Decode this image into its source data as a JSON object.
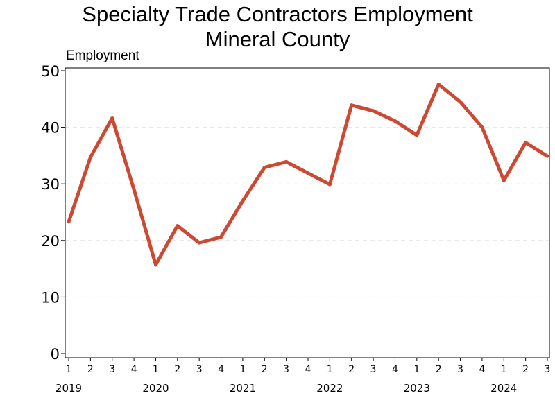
{
  "chart_data": {
    "type": "line",
    "title": [
      "Specialty Trade Contractors Employment",
      "Mineral County"
    ],
    "ylabel": "Employment",
    "ylim": [
      0,
      50
    ],
    "yticks": [
      0,
      10,
      20,
      30,
      40,
      50
    ],
    "grid": "horizontal-dashed",
    "line_color": "#cc4a33",
    "x": [
      {
        "quarter": "1",
        "year": "2019"
      },
      {
        "quarter": "2",
        "year": ""
      },
      {
        "quarter": "3",
        "year": ""
      },
      {
        "quarter": "4",
        "year": ""
      },
      {
        "quarter": "1",
        "year": "2020"
      },
      {
        "quarter": "2",
        "year": ""
      },
      {
        "quarter": "3",
        "year": ""
      },
      {
        "quarter": "4",
        "year": ""
      },
      {
        "quarter": "1",
        "year": "2021"
      },
      {
        "quarter": "2",
        "year": ""
      },
      {
        "quarter": "3",
        "year": ""
      },
      {
        "quarter": "4",
        "year": ""
      },
      {
        "quarter": "1",
        "year": "2022"
      },
      {
        "quarter": "2",
        "year": ""
      },
      {
        "quarter": "3",
        "year": ""
      },
      {
        "quarter": "4",
        "year": ""
      },
      {
        "quarter": "1",
        "year": "2023"
      },
      {
        "quarter": "2",
        "year": ""
      },
      {
        "quarter": "3",
        "year": ""
      },
      {
        "quarter": "4",
        "year": ""
      },
      {
        "quarter": "1",
        "year": "2024"
      },
      {
        "quarter": "2",
        "year": ""
      },
      {
        "quarter": "3",
        "year": ""
      }
    ],
    "series": [
      {
        "values": [
          23.3,
          34.7,
          41.6,
          29.0,
          15.7,
          22.6,
          19.6,
          20.6,
          27.0,
          32.9,
          33.9,
          31.9,
          29.9,
          43.9,
          42.9,
          41.1,
          38.6,
          47.6,
          44.5,
          40.0,
          30.6,
          37.3,
          34.9
        ]
      }
    ]
  }
}
